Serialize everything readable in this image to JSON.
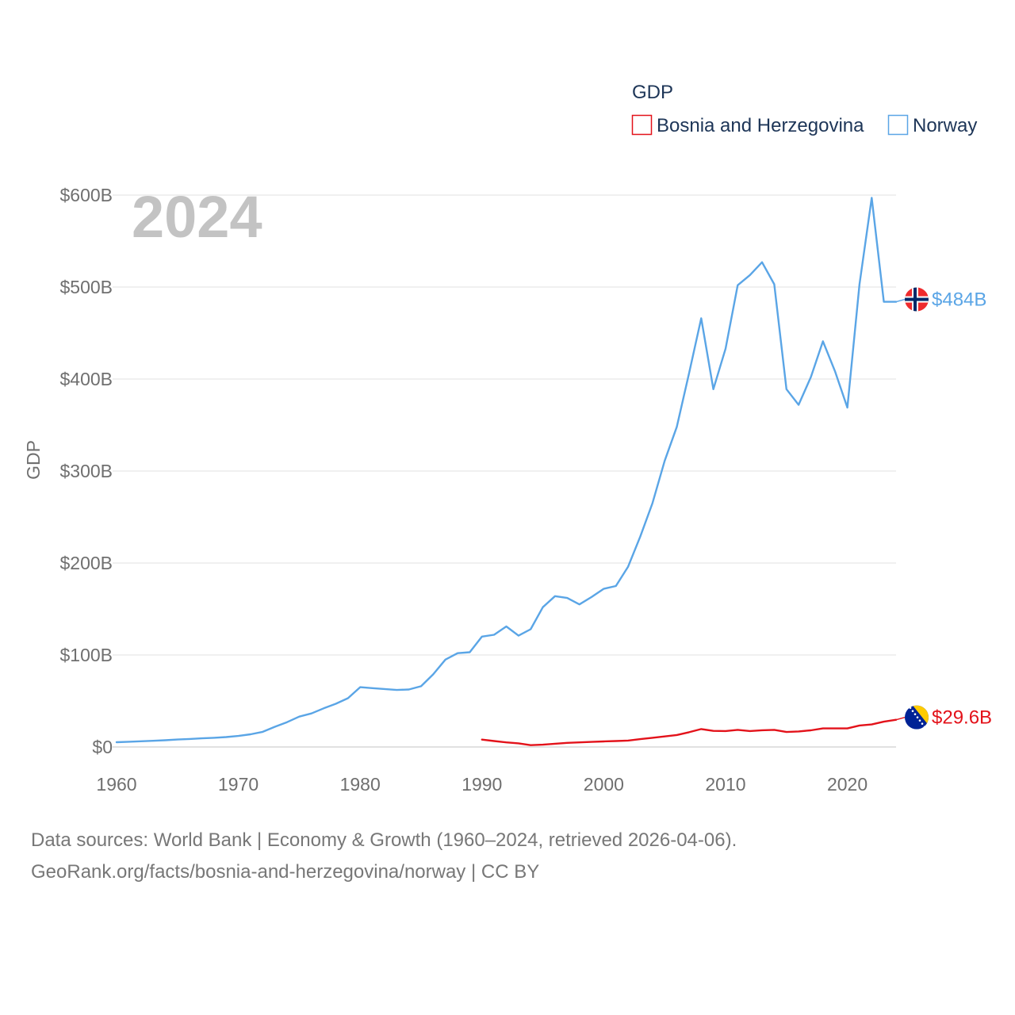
{
  "colors": {
    "norway": "#5aa5e6",
    "bosnia": "#e3121a",
    "grid": "#e6e6e6",
    "text": "#6f6f6f",
    "legend_text": "#1d3557",
    "year": "#c3c3c3"
  },
  "chart_data": {
    "type": "line",
    "title": "GDP",
    "year_label": "2024",
    "ylabel": "GDP",
    "xlabel": "",
    "xlim": [
      1960,
      2024
    ],
    "ylim": [
      0,
      600
    ],
    "x_ticks": [
      "1960",
      "1970",
      "1980",
      "1990",
      "2000",
      "2010",
      "2020"
    ],
    "y_ticks": [
      "$0",
      "$100B",
      "$200B",
      "$300B",
      "$400B",
      "$500B",
      "$600B"
    ],
    "grid": true,
    "legend_position": "top-right",
    "units": "billion USD",
    "series": [
      {
        "name": "Bosnia and Herzegovina",
        "key": "bosnia",
        "end_label": "$29.6B",
        "icon": "bosnia-flag-icon",
        "x": [
          1990,
          1991,
          1992,
          1993,
          1994,
          1995,
          1996,
          1997,
          1998,
          1999,
          2000,
          2001,
          2002,
          2003,
          2004,
          2005,
          2006,
          2007,
          2008,
          2009,
          2010,
          2011,
          2012,
          2013,
          2014,
          2015,
          2016,
          2017,
          2018,
          2019,
          2020,
          2021,
          2022,
          2023,
          2024
        ],
        "values": [
          8,
          6.5,
          5,
          4,
          2,
          2.5,
          3.5,
          4.5,
          5,
          5.5,
          6,
          6.5,
          7,
          8.5,
          10,
          11.5,
          13,
          16,
          19.5,
          17.5,
          17.3,
          18.6,
          17.3,
          18.2,
          18.6,
          16.3,
          16.9,
          18.1,
          20.2,
          20.2,
          20.2,
          23.4,
          24.5,
          27.5,
          29.6
        ]
      },
      {
        "name": "Norway",
        "key": "norway",
        "end_label": "$484B",
        "icon": "norway-flag-icon",
        "x": [
          1960,
          1961,
          1962,
          1963,
          1964,
          1965,
          1966,
          1967,
          1968,
          1969,
          1970,
          1971,
          1972,
          1973,
          1974,
          1975,
          1976,
          1977,
          1978,
          1979,
          1980,
          1981,
          1982,
          1983,
          1984,
          1985,
          1986,
          1987,
          1988,
          1989,
          1990,
          1991,
          1992,
          1993,
          1994,
          1995,
          1996,
          1997,
          1998,
          1999,
          2000,
          2001,
          2002,
          2003,
          2004,
          2005,
          2006,
          2007,
          2008,
          2009,
          2010,
          2011,
          2012,
          2013,
          2014,
          2015,
          2016,
          2017,
          2018,
          2019,
          2020,
          2021,
          2022,
          2023,
          2024
        ],
        "values": [
          5.2,
          5.7,
          6.2,
          6.7,
          7.3,
          8.1,
          8.7,
          9.4,
          10,
          10.8,
          12,
          13.8,
          16.5,
          22,
          27,
          33,
          36.5,
          42,
          47,
          53,
          65,
          64,
          63,
          62,
          62.5,
          66,
          79,
          95,
          102,
          103,
          120,
          122,
          131,
          121,
          128,
          152,
          164,
          162,
          155,
          163,
          172,
          175,
          196,
          229,
          265,
          311,
          348,
          406,
          466,
          389,
          433,
          502,
          513,
          527,
          503,
          389,
          372,
          402,
          441,
          408,
          369,
          503,
          597,
          484,
          484
        ]
      }
    ]
  },
  "source": {
    "line1": "Data sources: World Bank | Economy & Growth (1960–2024, retrieved 2026-04-06).",
    "line2": "GeoRank.org/facts/bosnia-and-herzegovina/norway | CC BY"
  }
}
